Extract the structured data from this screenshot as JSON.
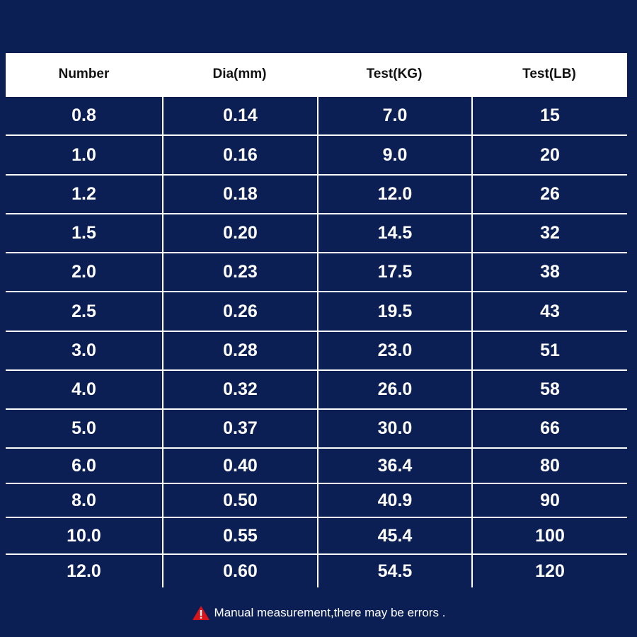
{
  "table": {
    "header": [
      "Number",
      "Dia(mm)",
      "Test(KG)",
      "Test(LB)"
    ],
    "rows": [
      [
        "0.8",
        "0.14",
        "7.0",
        "15"
      ],
      [
        "1.0",
        "0.16",
        "9.0",
        "20"
      ],
      [
        "1.2",
        "0.18",
        "12.0",
        "26"
      ],
      [
        "1.5",
        "0.20",
        "14.5",
        "32"
      ],
      [
        "2.0",
        "0.23",
        "17.5",
        "38"
      ],
      [
        "2.5",
        "0.26",
        "19.5",
        "43"
      ],
      [
        "3.0",
        "0.28",
        "23.0",
        "51"
      ],
      [
        "4.0",
        "0.32",
        "26.0",
        "58"
      ],
      [
        "5.0",
        "0.37",
        "30.0",
        "66"
      ],
      [
        "6.0",
        "0.40",
        "36.4",
        "80"
      ],
      [
        "8.0",
        "0.50",
        "40.9",
        "90"
      ],
      [
        "10.0",
        "0.55",
        "45.4",
        "100"
      ],
      [
        "12.0",
        "0.60",
        "54.5",
        "120"
      ]
    ]
  },
  "note": "Manual measurement,there may be errors ."
}
